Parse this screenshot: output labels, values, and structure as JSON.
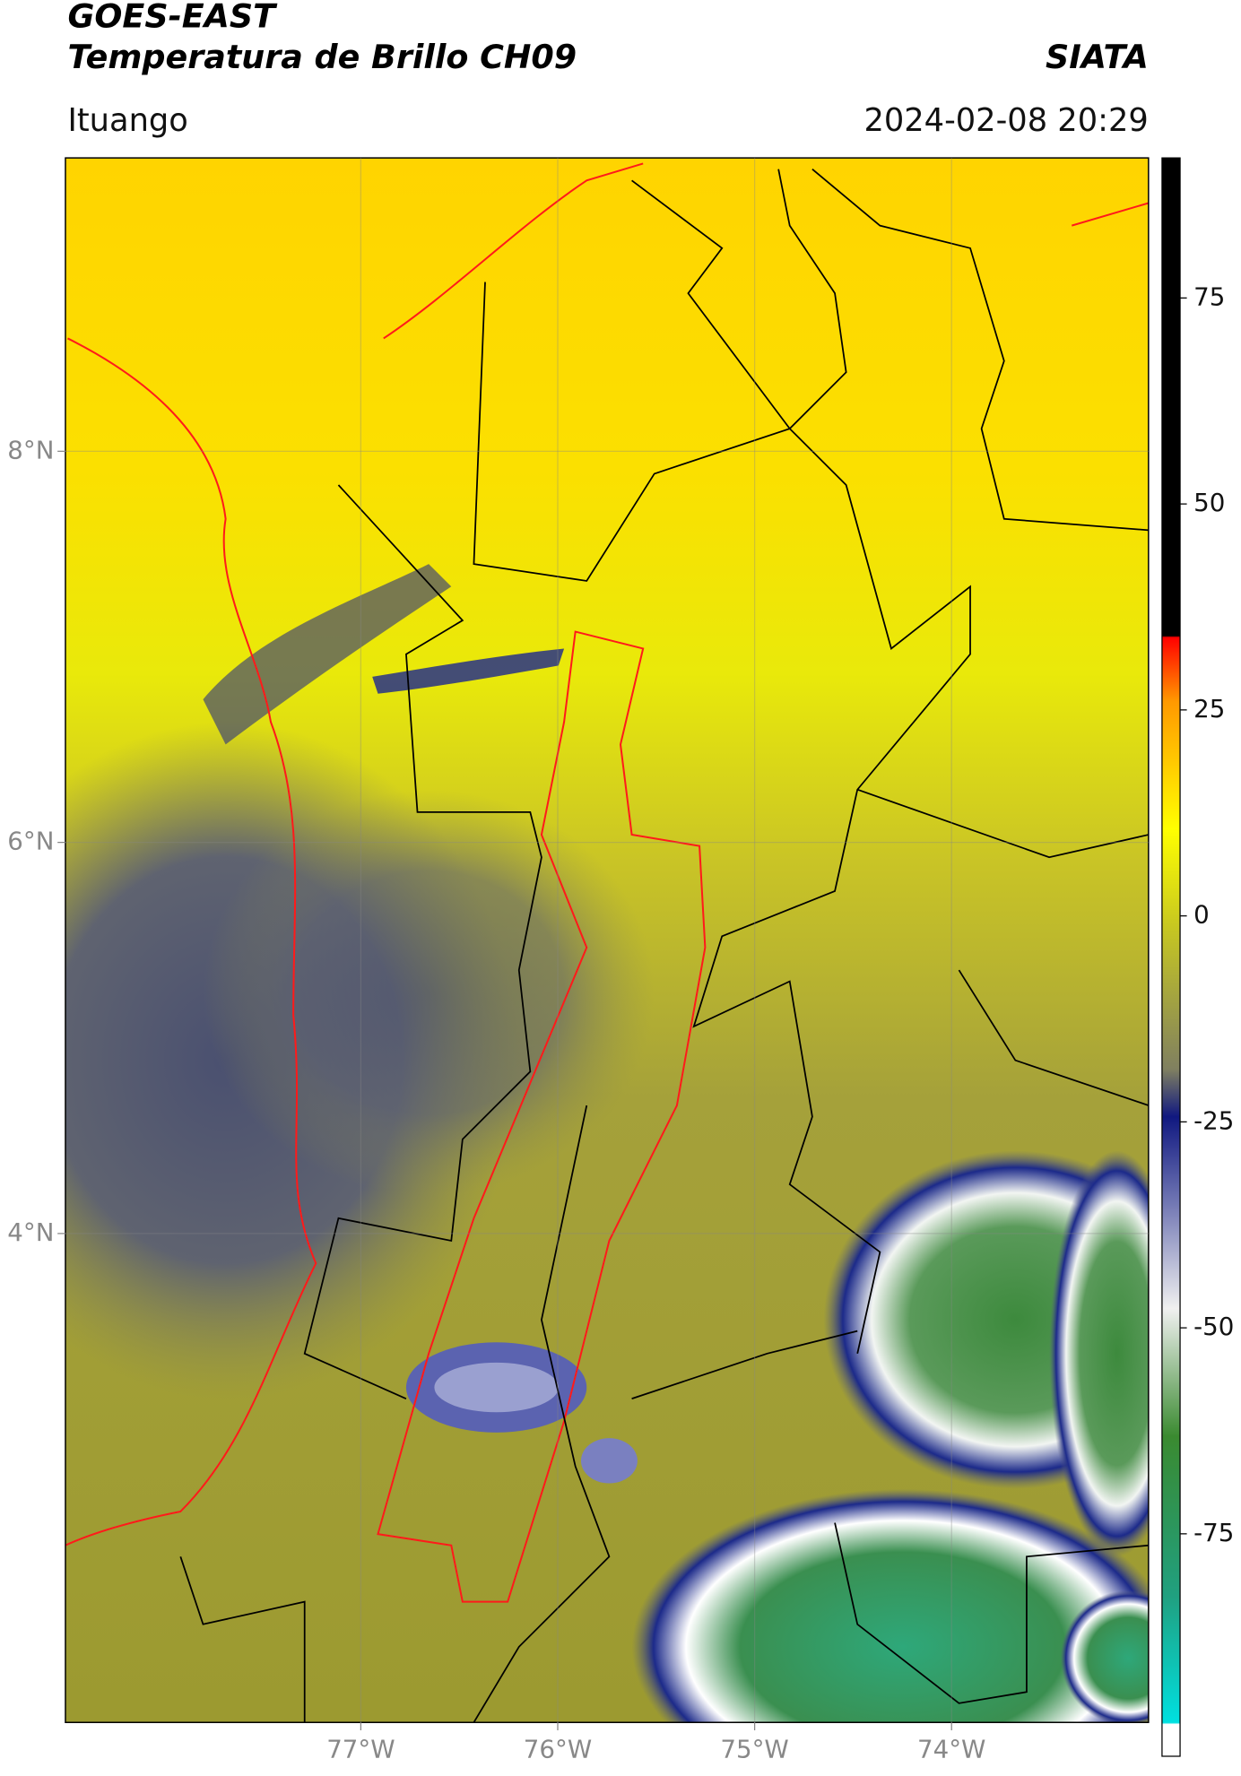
{
  "chart_data": {
    "type": "map",
    "title": "GOES-EAST",
    "subtitle": "Temperatura de Brillo CH09",
    "source": "SIATA",
    "location": "Ituango",
    "datetime": "2024-02-08 20:29",
    "xlim": [
      -78.5,
      -73
    ],
    "ylim": [
      1.5,
      9.5
    ],
    "xticks": [
      {
        "value": -77,
        "label": "77°W"
      },
      {
        "value": -76,
        "label": "76°W"
      },
      {
        "value": -75,
        "label": "75°W"
      },
      {
        "value": -74,
        "label": "74°W"
      }
    ],
    "yticks": [
      {
        "value": 8,
        "label": "8°N"
      },
      {
        "value": 6,
        "label": "6°N"
      },
      {
        "value": 4,
        "label": "4°N"
      }
    ],
    "grid": true,
    "colorbar": {
      "lim": [
        -102,
        92
      ],
      "ticks": [
        75,
        50,
        25,
        0,
        -25,
        -50,
        -75
      ]
    }
  }
}
